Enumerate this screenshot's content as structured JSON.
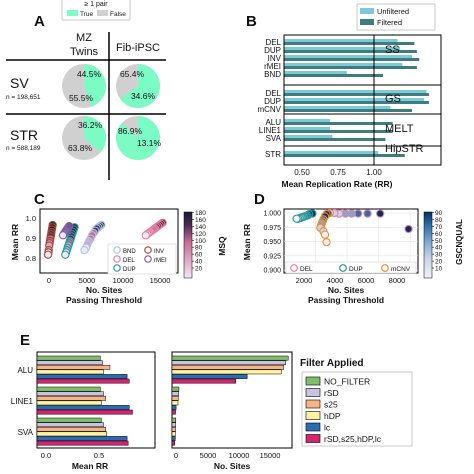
{
  "colors": {
    "mint": "#7dfbc4",
    "grey": "#d0d0d0",
    "unfiltered": "#7ec9da",
    "filtered": "#3e7d7b",
    "msq_cmap": [
      "#f2e8f2",
      "#d9a3c4",
      "#c96b96",
      "#4a2b55",
      "#1b1b2e"
    ],
    "gq_cmap": [
      "#f5f0f7",
      "#c9d4e8",
      "#7ea8cf",
      "#2f6fa7",
      "#053061"
    ],
    "filter_colors": [
      "#7fbf6b",
      "#c9c3dd",
      "#f4b487",
      "#fff2a1",
      "#2a6cb0",
      "#d6236f"
    ]
  },
  "panelA": {
    "label": "A",
    "legend_title": "≥ 1 pair",
    "legend_true": "True",
    "legend_false": "False",
    "col1": [
      "MZ",
      "Twins"
    ],
    "col2": "Fib-iPSC",
    "rows": [
      {
        "name": "SV",
        "n": "n = 198,651",
        "mz_true": "44.5%",
        "mz_false": "55.5%",
        "fib_true": "65.4%",
        "fib_false": "34.6%"
      },
      {
        "name": "STR",
        "n": "n = 588,189",
        "mz_true": "36.2%",
        "mz_false": "63.8%",
        "fib_true": "86.9%",
        "fib_false": "13.1%"
      }
    ]
  },
  "panelB": {
    "label": "B",
    "legend": [
      "Unfiltered",
      "Filtered"
    ],
    "xlabel": "Mean Replication Rate (RR)",
    "ticks": [
      "0.50",
      "0.75",
      "1.00"
    ],
    "groups": [
      "SS",
      "GS",
      "MELT",
      "HipSTR"
    ]
  },
  "panelC": {
    "label": "C",
    "ylabel": "Mean RR",
    "xlabel": "No. Sites\nPassing Threshold",
    "xticks": [
      "0",
      "5000",
      "10000",
      "15000"
    ],
    "yticks": [
      "0.8",
      "0.9",
      "1.0"
    ],
    "cbar_label": "MSQ",
    "cbar_ticks": [
      "20",
      "40",
      "60",
      "80",
      "100",
      "120",
      "140",
      "160",
      "180"
    ],
    "legend": [
      "BND",
      "INV",
      "DEL",
      "rMEI",
      "DUP"
    ]
  },
  "panelD": {
    "label": "D",
    "ylabel": "Mean RR",
    "xlabel": "No. Sites\nPassing Threshold",
    "xticks": [
      "2000",
      "4000",
      "6000",
      "8000"
    ],
    "yticks": [
      "0.900",
      "0.925",
      "0.950",
      "0.975",
      "1.000"
    ],
    "cbar_label": "GSCNQUAL",
    "cbar_ticks": [
      "10",
      "20",
      "30",
      "40",
      "50",
      "60",
      "70",
      "80",
      "90"
    ],
    "legend": [
      "DEL",
      "DUP",
      "mCNV"
    ]
  },
  "panelE": {
    "label": "E",
    "rows": [
      "ALU",
      "LINE1",
      "SVA"
    ],
    "xlabel_left": "Mean RR",
    "xlabel_right": "No. Sites",
    "left_ticks": [
      "0.0",
      "0.5"
    ],
    "right_ticks": [
      "0",
      "5000",
      "10000",
      "15000"
    ],
    "legend_title": "Filter Applied",
    "filters": [
      "NO_FILTER",
      "rSD",
      "s25",
      "hDP",
      "lc",
      "rSD,s25,hDP,lc"
    ]
  },
  "chart_data": [
    {
      "type": "pie",
      "title": "",
      "panel": "A",
      "charts": [
        {
          "row": "SV",
          "column": "MZ Twins",
          "values": [
            44.5,
            55.5
          ],
          "labels": [
            "True",
            "False"
          ]
        },
        {
          "row": "SV",
          "column": "Fib-iPSC",
          "values": [
            65.4,
            34.6
          ],
          "labels": [
            "True",
            "False"
          ]
        },
        {
          "row": "STR",
          "column": "MZ Twins",
          "values": [
            36.2,
            63.8
          ],
          "labels": [
            "True",
            "False"
          ]
        },
        {
          "row": "STR",
          "column": "Fib-iPSC",
          "values": [
            86.9,
            13.1
          ],
          "labels": [
            "True",
            "False"
          ]
        }
      ]
    },
    {
      "type": "bar",
      "panel": "B",
      "orientation": "horizontal",
      "categories": [
        "DEL",
        "DUP",
        "INV",
        "rMEI",
        "BND",
        "DEL",
        "DUP",
        "mCNV",
        "ALU",
        "LINE1",
        "SVA",
        "STR"
      ],
      "category_groups": [
        "SS",
        "SS",
        "SS",
        "SS",
        "SS",
        "GS",
        "GS",
        "GS",
        "MELT",
        "MELT",
        "MELT",
        "HipSTR"
      ],
      "series": [
        {
          "name": "Unfiltered",
          "values": [
            0.87,
            0.88,
            0.93,
            0.89,
            0.66,
            0.99,
            0.98,
            0.84,
            0.59,
            0.59,
            0.6,
            0.79
          ]
        },
        {
          "name": "Filtered",
          "values": [
            0.94,
            0.95,
            0.96,
            0.95,
            0.81,
            1.0,
            1.0,
            0.93,
            0.85,
            0.85,
            0.82,
            0.9
          ]
        }
      ],
      "xlabel": "Mean Replication Rate (RR)",
      "xlim": [
        0.4,
        1.05
      ]
    },
    {
      "type": "scatter",
      "panel": "C",
      "xlabel": "No. Sites Passing Threshold",
      "ylabel": "Mean RR",
      "xlim": [
        -1000,
        17000
      ],
      "ylim": [
        0.75,
        1.03
      ],
      "colorbar": {
        "label": "MSQ",
        "range": [
          0,
          190
        ]
      },
      "series": [
        {
          "name": "BND",
          "x": [
            7000,
            6800,
            6600,
            6400,
            6200,
            6000,
            5800,
            5600,
            5400,
            5200,
            5000,
            4800
          ],
          "y": [
            0.96,
            0.955,
            0.95,
            0.945,
            0.935,
            0.925,
            0.915,
            0.9,
            0.89,
            0.875,
            0.86,
            0.85
          ]
        },
        {
          "name": "DEL",
          "x": [
            15000,
            14800,
            14600,
            14400,
            14200,
            14000,
            13800,
            13600,
            13400,
            13200,
            13000,
            12800
          ],
          "y": [
            0.97,
            0.965,
            0.96,
            0.955,
            0.95,
            0.945,
            0.94,
            0.935,
            0.93,
            0.925,
            0.92,
            0.915
          ]
        },
        {
          "name": "DUP",
          "x": [
            3500,
            3400,
            3300,
            3200,
            3100,
            3000,
            2900,
            2800,
            2700,
            2600,
            2500,
            2400,
            2300
          ],
          "y": [
            0.95,
            0.94,
            0.93,
            0.92,
            0.91,
            0.9,
            0.89,
            0.88,
            0.87,
            0.86,
            0.85,
            0.84,
            0.83
          ]
        },
        {
          "name": "INV",
          "x": [
            650,
            600,
            550,
            500,
            450,
            400,
            350,
            300,
            250,
            200,
            150,
            100,
            50
          ],
          "y": [
            0.96,
            0.95,
            0.94,
            0.93,
            0.92,
            0.91,
            0.9,
            0.89,
            0.88,
            0.87,
            0.85,
            0.84,
            0.83
          ]
        },
        {
          "name": "rMEI",
          "x": [
            2800,
            2700,
            2600,
            2500,
            2400,
            2300,
            2200,
            2100,
            2000
          ],
          "y": [
            0.955,
            0.95,
            0.945,
            0.94,
            0.935,
            0.93,
            0.925,
            0.92,
            0.915
          ]
        }
      ]
    },
    {
      "type": "scatter",
      "panel": "D",
      "xlabel": "No. Sites Passing Threshold",
      "ylabel": "Mean RR",
      "xlim": [
        0,
        8500
      ],
      "ylim": [
        0.895,
        1.007
      ],
      "colorbar": {
        "label": "GSCNQUAL",
        "range": [
          0,
          95
        ]
      },
      "series": [
        {
          "name": "DEL",
          "x": [
            7900,
            6100,
            5300,
            4700,
            4300,
            3900,
            3500,
            3200,
            2900
          ],
          "y": [
            0.972,
            0.999,
            0.999,
            0.999,
            0.999,
            0.999,
            0.999,
            1.0,
            1.0
          ]
        },
        {
          "name": "DUP",
          "x": [
            1800,
            1600,
            1500,
            1400,
            1300,
            1200,
            1100,
            1000,
            900,
            800
          ],
          "y": [
            0.999,
            0.998,
            0.996,
            0.995,
            0.994,
            0.993,
            0.992,
            0.991,
            0.99,
            0.99
          ]
        },
        {
          "name": "mCNV",
          "x": [
            2800,
            2700,
            2600,
            2500,
            2450,
            2400,
            2350,
            2300,
            2500,
            2600,
            2700
          ],
          "y": [
            0.999,
            0.998,
            0.994,
            0.989,
            0.985,
            0.982,
            0.978,
            0.974,
            0.968,
            0.962,
            0.949
          ]
        }
      ]
    },
    {
      "type": "bar",
      "panel": "E",
      "orientation": "horizontal",
      "categories": [
        "ALU",
        "LINE1",
        "SVA"
      ],
      "xlabel": "Mean RR",
      "series": [
        {
          "name": "NO_FILTER",
          "values": [
            0.59,
            0.59,
            0.6
          ]
        },
        {
          "name": "rSD",
          "values": [
            0.61,
            0.62,
            0.62
          ]
        },
        {
          "name": "s25",
          "values": [
            0.68,
            0.64,
            0.64
          ]
        },
        {
          "name": "hDP",
          "values": [
            0.62,
            0.6,
            0.65
          ]
        },
        {
          "name": "lc",
          "values": [
            0.84,
            0.86,
            0.84
          ]
        },
        {
          "name": "rSD,s25,hDP,lc",
          "values": [
            0.86,
            0.89,
            0.85
          ]
        }
      ]
    },
    {
      "type": "bar",
      "panel": "E",
      "orientation": "horizontal",
      "categories": [
        "ALU",
        "LINE1",
        "SVA"
      ],
      "xlabel": "No. Sites",
      "series": [
        {
          "name": "NO_FILTER",
          "values": [
            18400,
            1100,
            600
          ]
        },
        {
          "name": "rSD",
          "values": [
            18000,
            1050,
            580
          ]
        },
        {
          "name": "s25",
          "values": [
            17700,
            1000,
            560
          ]
        },
        {
          "name": "hDP",
          "values": [
            17300,
            950,
            540
          ]
        },
        {
          "name": "lc",
          "values": [
            11900,
            650,
            520
          ]
        },
        {
          "name": "rSD,s25,hDP,lc",
          "values": [
            10100,
            560,
            420
          ]
        }
      ]
    }
  ]
}
